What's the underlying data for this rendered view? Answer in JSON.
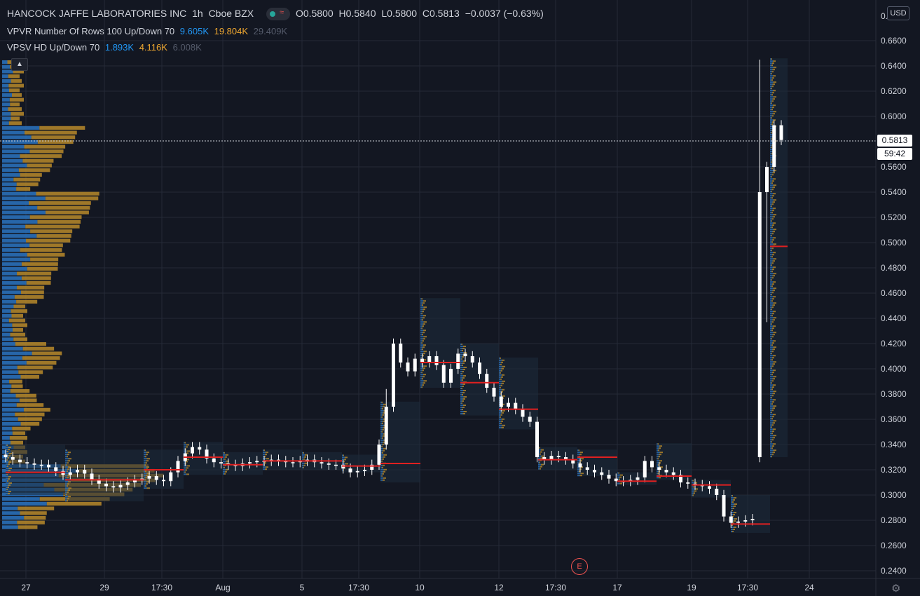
{
  "header": {
    "symbol": "HANCOCK JAFFE LABORATORIES INC",
    "interval": "1h",
    "exchange": "Cboe BZX",
    "open": "O0.5800",
    "high": "H0.5840",
    "low": "L0.5800",
    "close": "C0.5813",
    "change": "−0.0037 (−0.63%)"
  },
  "indicators": [
    {
      "label": "VPVR Number Of Rows 100 Up/Down 70",
      "up": "9.605K",
      "down": "19.804K",
      "total": "29.409K"
    },
    {
      "label": "VPSV HD Up/Down 70",
      "up": "1.893K",
      "down": "4.116K",
      "total": "6.008K"
    }
  ],
  "currency": "USD",
  "last_price": "0.5813",
  "countdown": "59:42",
  "earnings_marker": "E",
  "colors": {
    "background": "#131722",
    "grid": "#252a37",
    "up_volume": "#2a6fb8",
    "down_volume": "#b8892a",
    "candle": "#ffffff",
    "poc": "#e02020"
  },
  "chart_data": {
    "type": "candlestick",
    "y_ticks": [
      "0.2400",
      "0.2600",
      "0.2800",
      "0.3000",
      "0.3200",
      "0.3400",
      "0.3600",
      "0.3800",
      "0.4000",
      "0.4200",
      "0.4400",
      "0.4600",
      "0.4800",
      "0.5000",
      "0.5200",
      "0.5400",
      "0.5600",
      "0.6000",
      "0.6200",
      "0.6400",
      "0.6600"
    ],
    "y_top_label": "0.",
    "ylim": [
      0.234,
      0.69
    ],
    "x_ticks": [
      "27",
      "29",
      "17:30",
      "Aug",
      "5",
      "17:30",
      "10",
      "12",
      "17:30",
      "17",
      "19",
      "17:30",
      "24"
    ],
    "closes": [
      0.33,
      0.328,
      0.326,
      0.325,
      0.324,
      0.324,
      0.322,
      0.319,
      0.316,
      0.318,
      0.32,
      0.317,
      0.312,
      0.309,
      0.307,
      0.306,
      0.308,
      0.31,
      0.312,
      0.313,
      0.315,
      0.312,
      0.311,
      0.318,
      0.327,
      0.333,
      0.338,
      0.336,
      0.329,
      0.326,
      0.325,
      0.324,
      0.323,
      0.325,
      0.326,
      0.327,
      0.327,
      0.328,
      0.327,
      0.326,
      0.326,
      0.327,
      0.328,
      0.326,
      0.325,
      0.324,
      0.324,
      0.321,
      0.318,
      0.319,
      0.32,
      0.324,
      0.34,
      0.37,
      0.42,
      0.405,
      0.398,
      0.408,
      0.405,
      0.41,
      0.403,
      0.389,
      0.4,
      0.412,
      0.41,
      0.405,
      0.396,
      0.385,
      0.378,
      0.37,
      0.373,
      0.368,
      0.362,
      0.358,
      0.33,
      0.328,
      0.331,
      0.33,
      0.328,
      0.325,
      0.322,
      0.32,
      0.318,
      0.316,
      0.313,
      0.311,
      0.311,
      0.312,
      0.314,
      0.327,
      0.322,
      0.32,
      0.318,
      0.316,
      0.31,
      0.309,
      0.308,
      0.307,
      0.305,
      0.3,
      0.283,
      0.278,
      0.279,
      0.28,
      0.281,
      0.54,
      0.56,
      0.593,
      0.5813
    ]
  }
}
